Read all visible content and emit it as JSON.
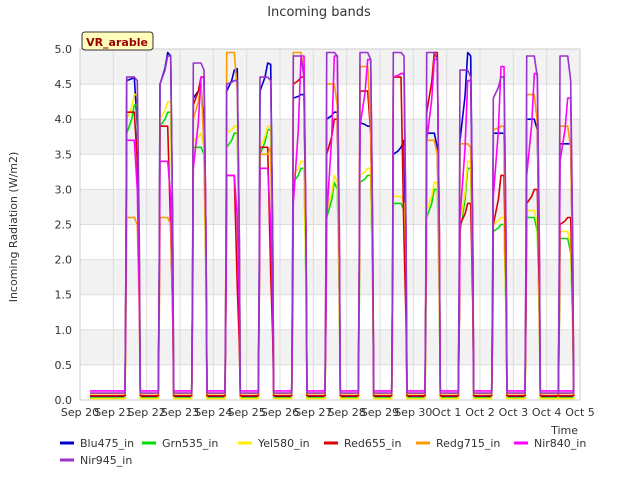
{
  "chart_data": {
    "type": "line",
    "title": "Incoming bands",
    "xlabel": "Time",
    "ylabel": "Incoming Radiation (W/m2)",
    "site_badge": "VR_arable",
    "ylim": [
      0,
      5.0
    ],
    "yticks": [
      "0.0",
      "0.5",
      "1.0",
      "1.5",
      "2.0",
      "2.5",
      "3.0",
      "3.5",
      "4.0",
      "4.5",
      "5.0"
    ],
    "xlim": [
      0,
      15
    ],
    "xticks": [
      "Sep 20",
      "Sep 21",
      "Sep 22",
      "Sep 23",
      "Sep 24",
      "Sep 25",
      "Sep 26",
      "Sep 27",
      "Sep 28",
      "Sep 29",
      "Sep 30",
      "Oct 1",
      "Oct 2",
      "Oct 3",
      "Oct 4",
      "Oct 5"
    ],
    "grid": true,
    "legend_position": "bottom",
    "x_start": 0.3,
    "x_end": 14.3,
    "day_profile": [
      0.55,
      0.63,
      0.72
    ],
    "series": [
      {
        "name": "Blu475_in",
        "color": "#0000cc",
        "night": 0.05,
        "peaks": [
          4.6,
          4.95,
          4.5,
          4.7,
          4.8,
          4.35,
          4.1,
          3.9,
          3.6,
          3.8,
          4.95,
          3.8,
          4.0,
          3.65
        ],
        "ends": [
          [
            4.55,
            3.9
          ],
          [
            4.5,
            4.9
          ],
          [
            4.3,
            3.8
          ],
          [
            4.4,
            4.72
          ],
          [
            4.4,
            4.78
          ],
          [
            4.3,
            4.35
          ],
          [
            4.0,
            4.1
          ],
          [
            3.95,
            3.9
          ],
          [
            3.5,
            3.7
          ],
          [
            3.8,
            3.6
          ],
          [
            3.7,
            4.9
          ],
          [
            3.8,
            3.8
          ],
          [
            4.0,
            3.85
          ],
          [
            3.65,
            3.65
          ]
        ]
      },
      {
        "name": "Grn535_in",
        "color": "#00dd00",
        "night": 0.03,
        "peaks": [
          4.2,
          4.1,
          3.6,
          3.8,
          3.85,
          3.3,
          3.1,
          3.2,
          2.8,
          3.0,
          3.3,
          2.5,
          2.6,
          2.3
        ],
        "ends": [
          [
            3.8,
            4.2
          ],
          [
            3.9,
            4.1
          ],
          [
            3.6,
            3.5
          ],
          [
            3.6,
            3.8
          ],
          [
            3.5,
            3.85
          ],
          [
            3.1,
            3.3
          ],
          [
            2.6,
            3.0
          ],
          [
            3.1,
            3.2
          ],
          [
            2.8,
            2.7
          ],
          [
            2.6,
            3.0
          ],
          [
            2.4,
            3.3
          ],
          [
            2.4,
            2.5
          ],
          [
            2.6,
            2.4
          ],
          [
            2.3,
            2.1
          ]
        ]
      },
      {
        "name": "Yel580_in",
        "color": "#ffee00",
        "night": 0.02,
        "peaks": [
          4.35,
          4.25,
          3.8,
          3.9,
          3.9,
          3.4,
          3.2,
          3.3,
          2.9,
          3.1,
          3.4,
          2.6,
          2.7,
          2.4
        ],
        "ends": [
          [
            4.0,
            4.35
          ],
          [
            4.0,
            4.25
          ],
          [
            3.7,
            3.6
          ],
          [
            3.8,
            3.9
          ],
          [
            3.6,
            3.9
          ],
          [
            3.2,
            3.4
          ],
          [
            2.7,
            3.1
          ],
          [
            3.2,
            3.3
          ],
          [
            2.9,
            2.8
          ],
          [
            2.7,
            3.1
          ],
          [
            2.5,
            3.4
          ],
          [
            2.5,
            2.6
          ],
          [
            2.7,
            2.5
          ],
          [
            2.4,
            2.2
          ]
        ]
      },
      {
        "name": "Red655_in",
        "color": "#dd0000",
        "night": 0.06,
        "peaks": [
          4.1,
          3.9,
          4.6,
          3.2,
          3.6,
          4.6,
          4.0,
          4.4,
          4.6,
          4.95,
          2.8,
          3.2,
          3.0,
          2.6
        ],
        "ends": [
          [
            4.1,
            3.4
          ],
          [
            3.9,
            2.4
          ],
          [
            4.2,
            4.6
          ],
          [
            3.2,
            1.6
          ],
          [
            3.6,
            1.8
          ],
          [
            4.5,
            4.6
          ],
          [
            3.5,
            4.0
          ],
          [
            4.4,
            3.8
          ],
          [
            4.6,
            2.3
          ],
          [
            4.1,
            4.95
          ],
          [
            2.5,
            2.8
          ],
          [
            2.5,
            3.2
          ],
          [
            2.8,
            3.0
          ],
          [
            2.5,
            2.6
          ]
        ]
      },
      {
        "name": "Redg715_in",
        "color": "#ff9900",
        "night": 0.09,
        "peaks": [
          2.6,
          2.6,
          4.5,
          4.95,
          3.5,
          4.95,
          4.5,
          4.75,
          4.65,
          3.7,
          3.65,
          3.9,
          4.35,
          3.9
        ],
        "ends": [
          [
            2.6,
            2.5
          ],
          [
            2.6,
            2.5
          ],
          [
            4.0,
            3.6
          ],
          [
            4.95,
            4.4
          ],
          [
            3.5,
            3.6
          ],
          [
            4.95,
            4.65
          ],
          [
            4.5,
            4.2
          ],
          [
            4.75,
            3.9
          ],
          [
            4.6,
            4.65
          ],
          [
            3.7,
            3.5
          ],
          [
            3.65,
            3.6
          ],
          [
            3.85,
            3.9
          ],
          [
            4.35,
            3.95
          ],
          [
            3.9,
            3.6
          ]
        ]
      },
      {
        "name": "Nir840_in",
        "color": "#ff00ff",
        "night": 0.13,
        "peaks": [
          3.7,
          3.4,
          4.6,
          3.2,
          3.3,
          4.9,
          4.9,
          4.85,
          4.65,
          4.85,
          4.55,
          4.75,
          4.65,
          4.3
        ],
        "ends": [
          [
            3.7,
            3.0
          ],
          [
            3.4,
            2.9
          ],
          [
            3.3,
            4.6
          ],
          [
            3.2,
            2.6
          ],
          [
            3.3,
            2.5
          ],
          [
            2.8,
            4.9
          ],
          [
            2.6,
            4.9
          ],
          [
            3.9,
            4.85
          ],
          [
            4.6,
            4.65
          ],
          [
            3.7,
            4.85
          ],
          [
            2.6,
            4.55
          ],
          [
            2.9,
            4.75
          ],
          [
            3.2,
            4.65
          ],
          [
            3.4,
            4.3
          ]
        ]
      },
      {
        "name": "Nir945_in",
        "color": "#9933cc",
        "night": 0.1,
        "peaks": [
          4.6,
          4.9,
          4.8,
          4.55,
          4.6,
          4.9,
          4.95,
          4.95,
          4.95,
          4.95,
          4.7,
          4.6,
          4.9,
          4.9
        ],
        "ends": [
          [
            4.6,
            4.55
          ],
          [
            4.5,
            4.9
          ],
          [
            4.8,
            4.7
          ],
          [
            4.5,
            4.55
          ],
          [
            4.6,
            4.55
          ],
          [
            4.9,
            4.6
          ],
          [
            4.95,
            4.9
          ],
          [
            4.95,
            4.85
          ],
          [
            4.95,
            4.9
          ],
          [
            4.95,
            4.85
          ],
          [
            4.7,
            4.6
          ],
          [
            4.3,
            4.6
          ],
          [
            4.9,
            4.6
          ],
          [
            4.9,
            4.55
          ]
        ]
      }
    ]
  }
}
